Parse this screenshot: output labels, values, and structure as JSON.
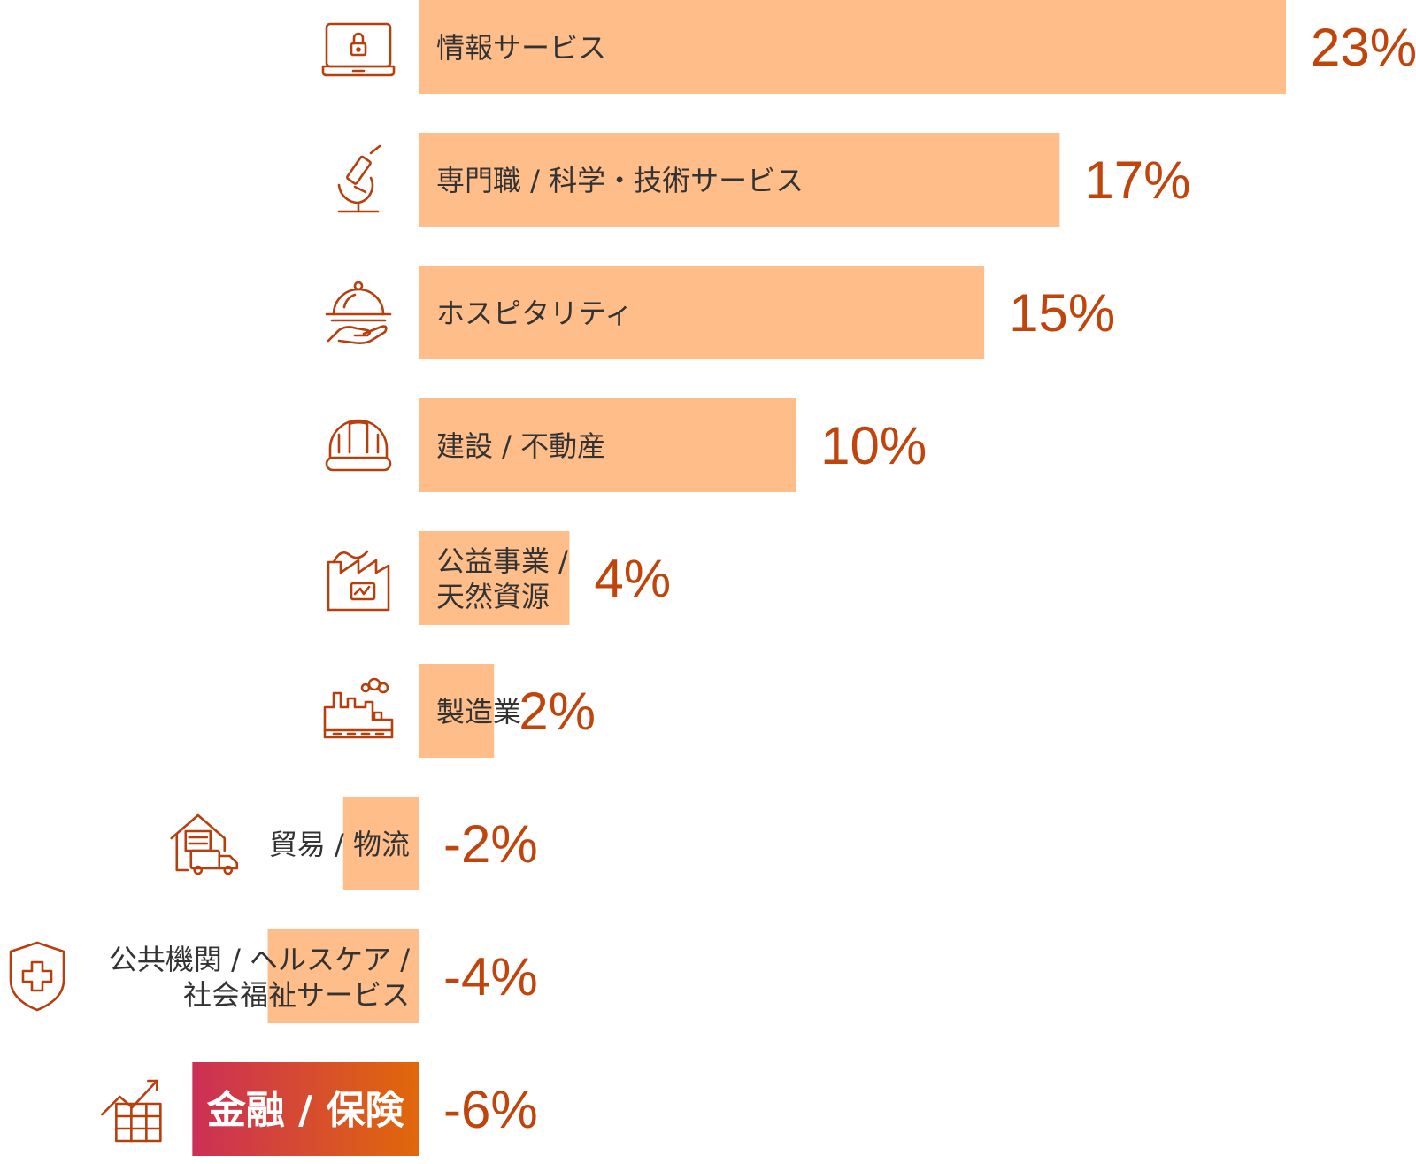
{
  "chart_data": {
    "type": "bar",
    "orientation": "horizontal",
    "categories": [
      "情報サービス",
      "専門職 / 科学・技術サービス",
      "ホスピタリティ",
      "建設 / 不動産",
      "公益事業 / 天然資源",
      "製造業",
      "貿易 / 物流",
      "公共機関 / ヘルスケア / 社会福祉サービス",
      "金融 / 保険"
    ],
    "label_lines": [
      [
        "情報サービス"
      ],
      [
        "専門職 / 科学・技術サービス"
      ],
      [
        "ホスピタリティ"
      ],
      [
        "建設 / 不動産"
      ],
      [
        "公益事業 /",
        "天然資源"
      ],
      [
        "製造業"
      ],
      [
        "貿易 / 物流"
      ],
      [
        "公共機関 / ヘルスケア /",
        "社会福祉サービス"
      ],
      [
        "金融 / 保険"
      ]
    ],
    "values": [
      23,
      17,
      15,
      10,
      4,
      2,
      -2,
      -4,
      -6
    ],
    "value_labels": [
      "23%",
      "17%",
      "15%",
      "10%",
      "4%",
      "2%",
      "-2%",
      "-4%",
      "-6%"
    ],
    "icons": [
      "laptop-lock-icon",
      "microscope-icon",
      "cloche-hand-icon",
      "hard-hat-icon",
      "utility-plant-icon",
      "factory-icon",
      "warehouse-truck-icon",
      "health-shield-icon",
      "finance-growth-icon"
    ],
    "highlight_index": 8,
    "xlim": [
      -6,
      23
    ],
    "colors": {
      "bar": "#FFBD8A",
      "value_text": "#C0450C",
      "icon": "#B5400E",
      "highlight_start": "#CC2F56",
      "highlight_end": "#E0680A",
      "label_text": "#333333"
    }
  }
}
